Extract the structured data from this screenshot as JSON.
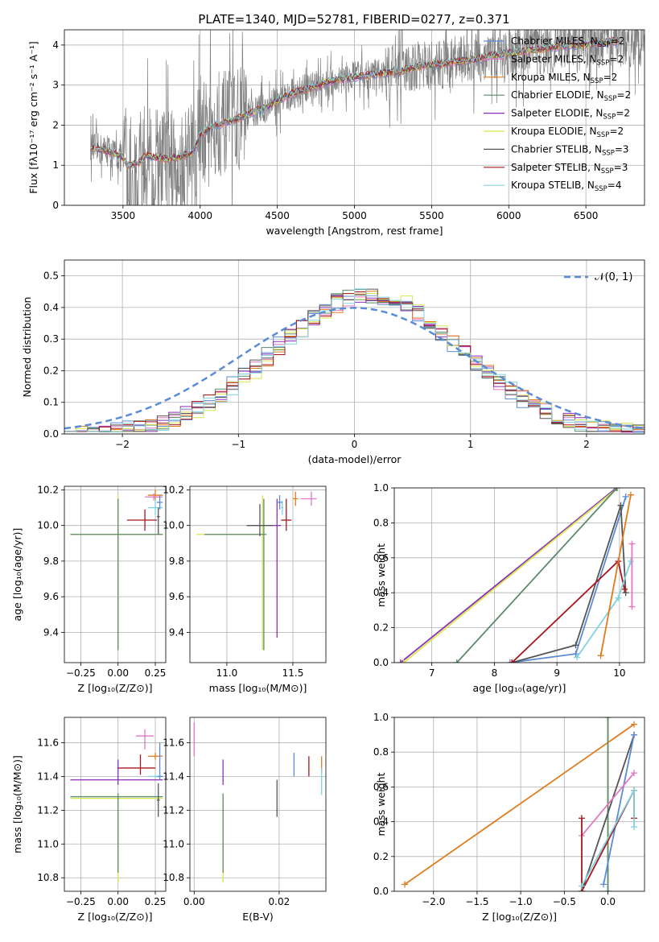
{
  "figure_title": "PLATE=1340, MJD=52781, FIBERID=0277, z=0.371",
  "chart_data": [
    {
      "id": "spectrum",
      "type": "line",
      "title": "PLATE=1340, MJD=52781, FIBERID=0277, z=0.371",
      "xlabel": "wavelength [Angstrom, rest frame]",
      "ylabel": "Flux [fλ10⁻¹⁷ erg cm⁻² s⁻¹ A⁻¹]",
      "xlim": [
        3120,
        6880
      ],
      "ylim": [
        0,
        4.38
      ],
      "xticks": [
        3500,
        4000,
        4500,
        5000,
        5500,
        6000,
        6500
      ],
      "yticks": [
        0,
        1,
        2,
        3,
        4
      ],
      "data_color": "#808080",
      "model_x": [
        3290,
        3400,
        3500,
        3530,
        3600,
        3650,
        3700,
        3800,
        3900,
        3950,
        4000,
        4100,
        4200,
        4300,
        4400,
        4500,
        4600,
        4700,
        4800,
        4900,
        5000,
        5100,
        5200,
        5300,
        5400,
        5500,
        5600,
        5700,
        5800,
        5900,
        6000,
        6100,
        6200,
        6300,
        6400,
        6500,
        6600,
        6700
      ],
      "model_y": [
        1.45,
        1.35,
        1.2,
        1.0,
        1.05,
        1.25,
        1.2,
        1.15,
        1.25,
        1.3,
        1.75,
        2.0,
        2.1,
        2.25,
        2.4,
        2.6,
        2.8,
        2.9,
        3.05,
        3.15,
        3.2,
        3.25,
        3.3,
        3.35,
        3.45,
        3.5,
        3.55,
        3.6,
        3.65,
        3.75,
        3.8,
        3.85,
        3.9,
        3.95,
        4.0,
        4.0,
        4.05,
        4.1
      ],
      "legend_loc": "upper-right",
      "series": [
        {
          "name": "Chabrier MILES, N",
          "sub": "SSP",
          "suffix": "=2",
          "color": "#5b8bd6"
        },
        {
          "name": "Salpeter MILES, N",
          "sub": "SSP",
          "suffix": "=2",
          "color": "#e377c2"
        },
        {
          "name": "Kroupa MILES, N",
          "sub": "SSP",
          "suffix": "=2",
          "color": "#e07b1c"
        },
        {
          "name": "Chabrier ELODIE, N",
          "sub": "SSP",
          "suffix": "=2",
          "color": "#5c8a6a"
        },
        {
          "name": "Salpeter ELODIE, N",
          "sub": "SSP",
          "suffix": "=2",
          "color": "#8c2fb8"
        },
        {
          "name": "Kroupa ELODIE, N",
          "sub": "SSP",
          "suffix": "=2",
          "color": "#d6e84a"
        },
        {
          "name": "Chabrier STELIB, N",
          "sub": "SSP",
          "suffix": "=3",
          "color": "#555555"
        },
        {
          "name": "Salpeter STELIB, N",
          "sub": "SSP",
          "suffix": "=3",
          "color": "#a8161c"
        },
        {
          "name": "Kroupa STELIB, N",
          "sub": "SSP",
          "suffix": "=4",
          "color": "#80d2e0"
        }
      ]
    },
    {
      "id": "residuals",
      "type": "bar",
      "xlabel": "(data-model)/error",
      "ylabel": "Normed distribution",
      "xlim": [
        -2.5,
        2.5
      ],
      "ylim": [
        0,
        0.55
      ],
      "xticks": [
        -2,
        -1,
        0,
        1,
        2
      ],
      "yticks": [
        0.0,
        0.1,
        0.2,
        0.3,
        0.4,
        0.5
      ],
      "bin_edges_start": -2.5,
      "bin_width": 0.1,
      "normal_label": "𝒩(0, 1)",
      "normal_color": "#5b8bd6"
    },
    {
      "id": "age-vs-z",
      "type": "scatter",
      "xlabel": "Z [log₁₀(Z/Z⊙)]",
      "ylabel": "age [log₁₀(age/yr)]",
      "xlim": [
        -0.36,
        0.32
      ],
      "ylim": [
        9.23,
        10.22
      ],
      "xticks": [
        -0.25,
        0.0,
        0.25
      ],
      "xticklabels": [
        "−0.25",
        "0.00",
        "0.25"
      ],
      "yticks": [
        9.4,
        9.6,
        9.8,
        10.0,
        10.2
      ],
      "points": [
        {
          "color": "#d6e84a",
          "x": 0.0,
          "y": 9.95,
          "xerr": [
            0.32,
            0.3
          ],
          "yerr": [
            0.65,
            0.22
          ]
        },
        {
          "color": "#5c8a6a",
          "x": 0.0,
          "y": 9.95,
          "xerr": [
            0.32,
            0.3
          ],
          "yerr": [
            0.65,
            0.2
          ]
        },
        {
          "color": "#a8161c",
          "x": 0.18,
          "y": 10.03,
          "xerr": [
            0.12,
            0.08
          ],
          "yerr": [
            0.06,
            0.06
          ]
        },
        {
          "color": "#e07b1c",
          "x": 0.25,
          "y": 10.17,
          "xerr": [
            0.05,
            0.05
          ],
          "yerr": [
            0.03,
            0.03
          ]
        },
        {
          "color": "#e377c2",
          "x": 0.24,
          "y": 10.16,
          "xerr": [
            0.06,
            0.06
          ],
          "yerr": [
            0.02,
            0.02
          ]
        },
        {
          "color": "#80d2e0",
          "x": 0.25,
          "y": 10.1,
          "xerr": [
            0.05,
            0.05
          ],
          "yerr": [
            0.04,
            0.05
          ]
        },
        {
          "color": "#555555",
          "x": 0.27,
          "y": 10.05,
          "xerr": [
            0.01,
            0.01
          ],
          "yerr": [
            0.1,
            0.05
          ]
        },
        {
          "color": "#5b8bd6",
          "x": 0.28,
          "y": 10.13,
          "xerr": [
            0.02,
            0.02
          ],
          "yerr": [
            0.04,
            0.04
          ]
        }
      ]
    },
    {
      "id": "age-vs-mass",
      "type": "scatter",
      "xlabel": "mass [log₁₀(M/M⊙)]",
      "ylabel": "",
      "xlim": [
        10.72,
        11.75
      ],
      "ylim": [
        9.23,
        10.22
      ],
      "xticks": [
        11.0,
        11.5
      ],
      "yticks": [
        9.4,
        9.6,
        9.8,
        10.0,
        10.2
      ],
      "points": [
        {
          "color": "#d6e84a",
          "x": 11.27,
          "y": 9.95,
          "xerr": [
            0.5,
            0.02
          ],
          "yerr": [
            0.65,
            0.22
          ]
        },
        {
          "color": "#5c8a6a",
          "x": 11.28,
          "y": 9.95,
          "xerr": [
            0.45,
            0.02
          ],
          "yerr": [
            0.65,
            0.2
          ]
        },
        {
          "color": "#8c2fb8",
          "x": 11.38,
          "y": 10.0,
          "xerr": [
            0.03,
            0.03
          ],
          "yerr": [
            0.63,
            0.15
          ]
        },
        {
          "color": "#555555",
          "x": 11.25,
          "y": 10.0,
          "xerr": [
            0.1,
            0.1
          ],
          "yerr": [
            0.06,
            0.12
          ]
        },
        {
          "color": "#a8161c",
          "x": 11.45,
          "y": 10.03,
          "xerr": [
            0.04,
            0.04
          ],
          "yerr": [
            0.06,
            0.12
          ]
        },
        {
          "color": "#e07b1c",
          "x": 11.52,
          "y": 10.15,
          "xerr": [
            0.02,
            0.02
          ],
          "yerr": [
            0.04,
            0.04
          ]
        },
        {
          "color": "#e377c2",
          "x": 11.64,
          "y": 10.15,
          "xerr": [
            0.08,
            0.04
          ],
          "yerr": [
            0.04,
            0.04
          ]
        },
        {
          "color": "#80d2e0",
          "x": 11.42,
          "y": 10.1,
          "xerr": [
            0.01,
            0.01
          ],
          "yerr": [
            0.04,
            0.04
          ]
        },
        {
          "color": "#5b8bd6",
          "x": 11.4,
          "y": 10.13,
          "xerr": [
            0.02,
            0.02
          ],
          "yerr": [
            0.04,
            0.04
          ]
        }
      ]
    },
    {
      "id": "weight-vs-age",
      "type": "line",
      "xlabel": "age [log₁₀(age/yr)]",
      "ylabel": "mass weight",
      "xlim": [
        6.4,
        10.4
      ],
      "ylim": [
        0.0,
        1.0
      ],
      "xticks": [
        7,
        8,
        9,
        10
      ],
      "yticks": [
        0.0,
        0.2,
        0.4,
        0.6,
        0.8,
        1.0
      ],
      "lines": [
        {
          "color": "#8c2fb8",
          "x": [
            6.5,
            9.95
          ],
          "y": [
            0.0,
            1.0
          ]
        },
        {
          "color": "#d6e84a",
          "x": [
            6.55,
            9.97
          ],
          "y": [
            0.0,
            1.0
          ]
        },
        {
          "color": "#5c8a6a",
          "x": [
            7.4,
            9.96
          ],
          "y": [
            0.0,
            1.0
          ]
        },
        {
          "color": "#5b8bd6",
          "x": [
            8.25,
            9.3,
            10.1
          ],
          "y": [
            0.0,
            0.05,
            0.95
          ]
        },
        {
          "color": "#555555",
          "x": [
            8.28,
            9.3,
            10.02,
            10.1
          ],
          "y": [
            0.0,
            0.1,
            0.9,
            0.4
          ]
        },
        {
          "color": "#a8161c",
          "x": [
            8.28,
            9.98,
            10.08
          ],
          "y": [
            0.0,
            0.58,
            0.42
          ]
        },
        {
          "color": "#80d2e0",
          "x": [
            9.32,
            9.98,
            10.18
          ],
          "y": [
            0.03,
            0.37,
            0.58
          ]
        },
        {
          "color": "#e07b1c",
          "x": [
            9.7,
            10.18
          ],
          "y": [
            0.04,
            0.96
          ]
        },
        {
          "color": "#e377c2",
          "x": [
            10.2,
            10.2
          ],
          "y": [
            0.32,
            0.68
          ]
        }
      ]
    },
    {
      "id": "mass-vs-z",
      "type": "scatter",
      "xlabel": "Z [log₁₀(Z/Z⊙)]",
      "ylabel": "mass [log₁₀(M/M⊙)]",
      "xlim": [
        -0.36,
        0.32
      ],
      "ylim": [
        10.72,
        11.75
      ],
      "xticks": [
        -0.25,
        0.0,
        0.25
      ],
      "xticklabels": [
        "−0.25",
        "0.00",
        "0.25"
      ],
      "yticks": [
        10.8,
        11.0,
        11.2,
        11.4,
        11.6
      ],
      "points": [
        {
          "color": "#d6e84a",
          "x": 0.0,
          "y": 11.27,
          "xerr": [
            0.32,
            0.3
          ],
          "yerr": [
            0.5,
            0.02
          ]
        },
        {
          "color": "#5c8a6a",
          "x": 0.0,
          "y": 11.28,
          "xerr": [
            0.32,
            0.3
          ],
          "yerr": [
            0.45,
            0.02
          ]
        },
        {
          "color": "#8c2fb8",
          "x": 0.0,
          "y": 11.38,
          "xerr": [
            0.32,
            0.3
          ],
          "yerr": [
            0.03,
            0.12
          ]
        },
        {
          "color": "#555555",
          "x": 0.27,
          "y": 11.26,
          "xerr": [
            0.01,
            0.01
          ],
          "yerr": [
            0.1,
            0.1
          ]
        },
        {
          "color": "#a8161c",
          "x": 0.15,
          "y": 11.45,
          "xerr": [
            0.15,
            0.1
          ],
          "yerr": [
            0.04,
            0.08
          ]
        },
        {
          "color": "#e07b1c",
          "x": 0.25,
          "y": 11.52,
          "xerr": [
            0.05,
            0.05
          ],
          "yerr": [
            0.02,
            0.02
          ]
        },
        {
          "color": "#e377c2",
          "x": 0.18,
          "y": 11.64,
          "xerr": [
            0.06,
            0.06
          ],
          "yerr": [
            0.08,
            0.04
          ]
        },
        {
          "color": "#80d2e0",
          "x": 0.25,
          "y": 11.4,
          "xerr": [
            0.05,
            0.05
          ],
          "yerr": [
            0.01,
            0.01
          ]
        },
        {
          "color": "#5b8bd6",
          "x": 0.28,
          "y": 11.4,
          "xerr": [
            0.02,
            0.02
          ],
          "yerr": [
            0.02,
            0.2
          ]
        }
      ]
    },
    {
      "id": "mass-vs-ebv",
      "type": "scatter",
      "xlabel": "E(B-V)",
      "ylabel": "",
      "xlim": [
        -0.001,
        0.031
      ],
      "ylim": [
        10.72,
        11.75
      ],
      "xticks": [
        0.0,
        0.02
      ],
      "xticklabels": [
        "0.00",
        "0.02"
      ],
      "yticks": [
        10.8,
        11.0,
        11.2,
        11.4,
        11.6
      ],
      "points": [
        {
          "color": "#e377c2",
          "x": 0.0,
          "y": 11.64,
          "xerr": [
            0,
            0
          ],
          "yerr": [
            0.12,
            0.08
          ]
        },
        {
          "color": "#d6e84a",
          "x": 0.0068,
          "y": 11.27,
          "xerr": [
            0,
            0
          ],
          "yerr": [
            0.5,
            0.02
          ]
        },
        {
          "color": "#5c8a6a",
          "x": 0.0068,
          "y": 11.28,
          "xerr": [
            0,
            0
          ],
          "yerr": [
            0.45,
            0.02
          ]
        },
        {
          "color": "#8c2fb8",
          "x": 0.0068,
          "y": 11.4,
          "xerr": [
            0,
            0
          ],
          "yerr": [
            0.05,
            0.1
          ]
        },
        {
          "color": "#555555",
          "x": 0.0195,
          "y": 11.26,
          "xerr": [
            0,
            0
          ],
          "yerr": [
            0.1,
            0.12
          ]
        },
        {
          "color": "#5b8bd6",
          "x": 0.0235,
          "y": 11.47,
          "xerr": [
            0,
            0
          ],
          "yerr": [
            0.07,
            0.07
          ]
        },
        {
          "color": "#a8161c",
          "x": 0.027,
          "y": 11.46,
          "xerr": [
            0,
            0
          ],
          "yerr": [
            0.06,
            0.06
          ]
        },
        {
          "color": "#e07b1c",
          "x": 0.03,
          "y": 11.47,
          "xerr": [
            0,
            0
          ],
          "yerr": [
            0.05,
            0.05
          ]
        },
        {
          "color": "#80d2e0",
          "x": 0.03,
          "y": 11.37,
          "xerr": [
            0,
            0
          ],
          "yerr": [
            0.08,
            0.08
          ]
        }
      ]
    },
    {
      "id": "weight-vs-z",
      "type": "line",
      "xlabel": "Z [log₁₀(Z/Z⊙)]",
      "ylabel": "mass weight",
      "xlim": [
        -2.45,
        0.42
      ],
      "ylim": [
        0.0,
        1.0
      ],
      "xticks": [
        -2.0,
        -1.5,
        -1.0,
        -0.5,
        0.0
      ],
      "xticklabels": [
        "−2.0",
        "−1.5",
        "−1.0",
        "−0.5",
        "0.0"
      ],
      "yticks": [
        0.0,
        0.2,
        0.4,
        0.6,
        0.8,
        1.0
      ],
      "lines": [
        {
          "color": "#e07b1c",
          "x": [
            -2.33,
            0.3
          ],
          "y": [
            0.04,
            0.96
          ]
        },
        {
          "color": "#d6e84a",
          "x": [
            0.0,
            0.0
          ],
          "y": [
            0.0,
            1.0
          ]
        },
        {
          "color": "#5c8a6a",
          "x": [
            0.0,
            0.0
          ],
          "y": [
            0.0,
            1.0
          ]
        },
        {
          "color": "#555555",
          "x": [
            -0.3,
            0.3
          ],
          "y": [
            0.0,
            0.9
          ]
        },
        {
          "color": "#5b8bd6",
          "x": [
            -0.05,
            0.3
          ],
          "y": [
            0.04,
            0.9
          ]
        },
        {
          "color": "#e377c2",
          "x": [
            -0.3,
            0.3
          ],
          "y": [
            0.32,
            0.68
          ]
        },
        {
          "color": "#a8161c",
          "x": [
            -0.3,
            -0.3,
            0.3,
            0.3
          ],
          "y": [
            0.42,
            0.0,
            0.58,
            0.42
          ]
        },
        {
          "color": "#80d2e0",
          "x": [
            -0.3,
            0.3,
            0.3
          ],
          "y": [
            0.03,
            0.58,
            0.37
          ]
        }
      ]
    }
  ]
}
